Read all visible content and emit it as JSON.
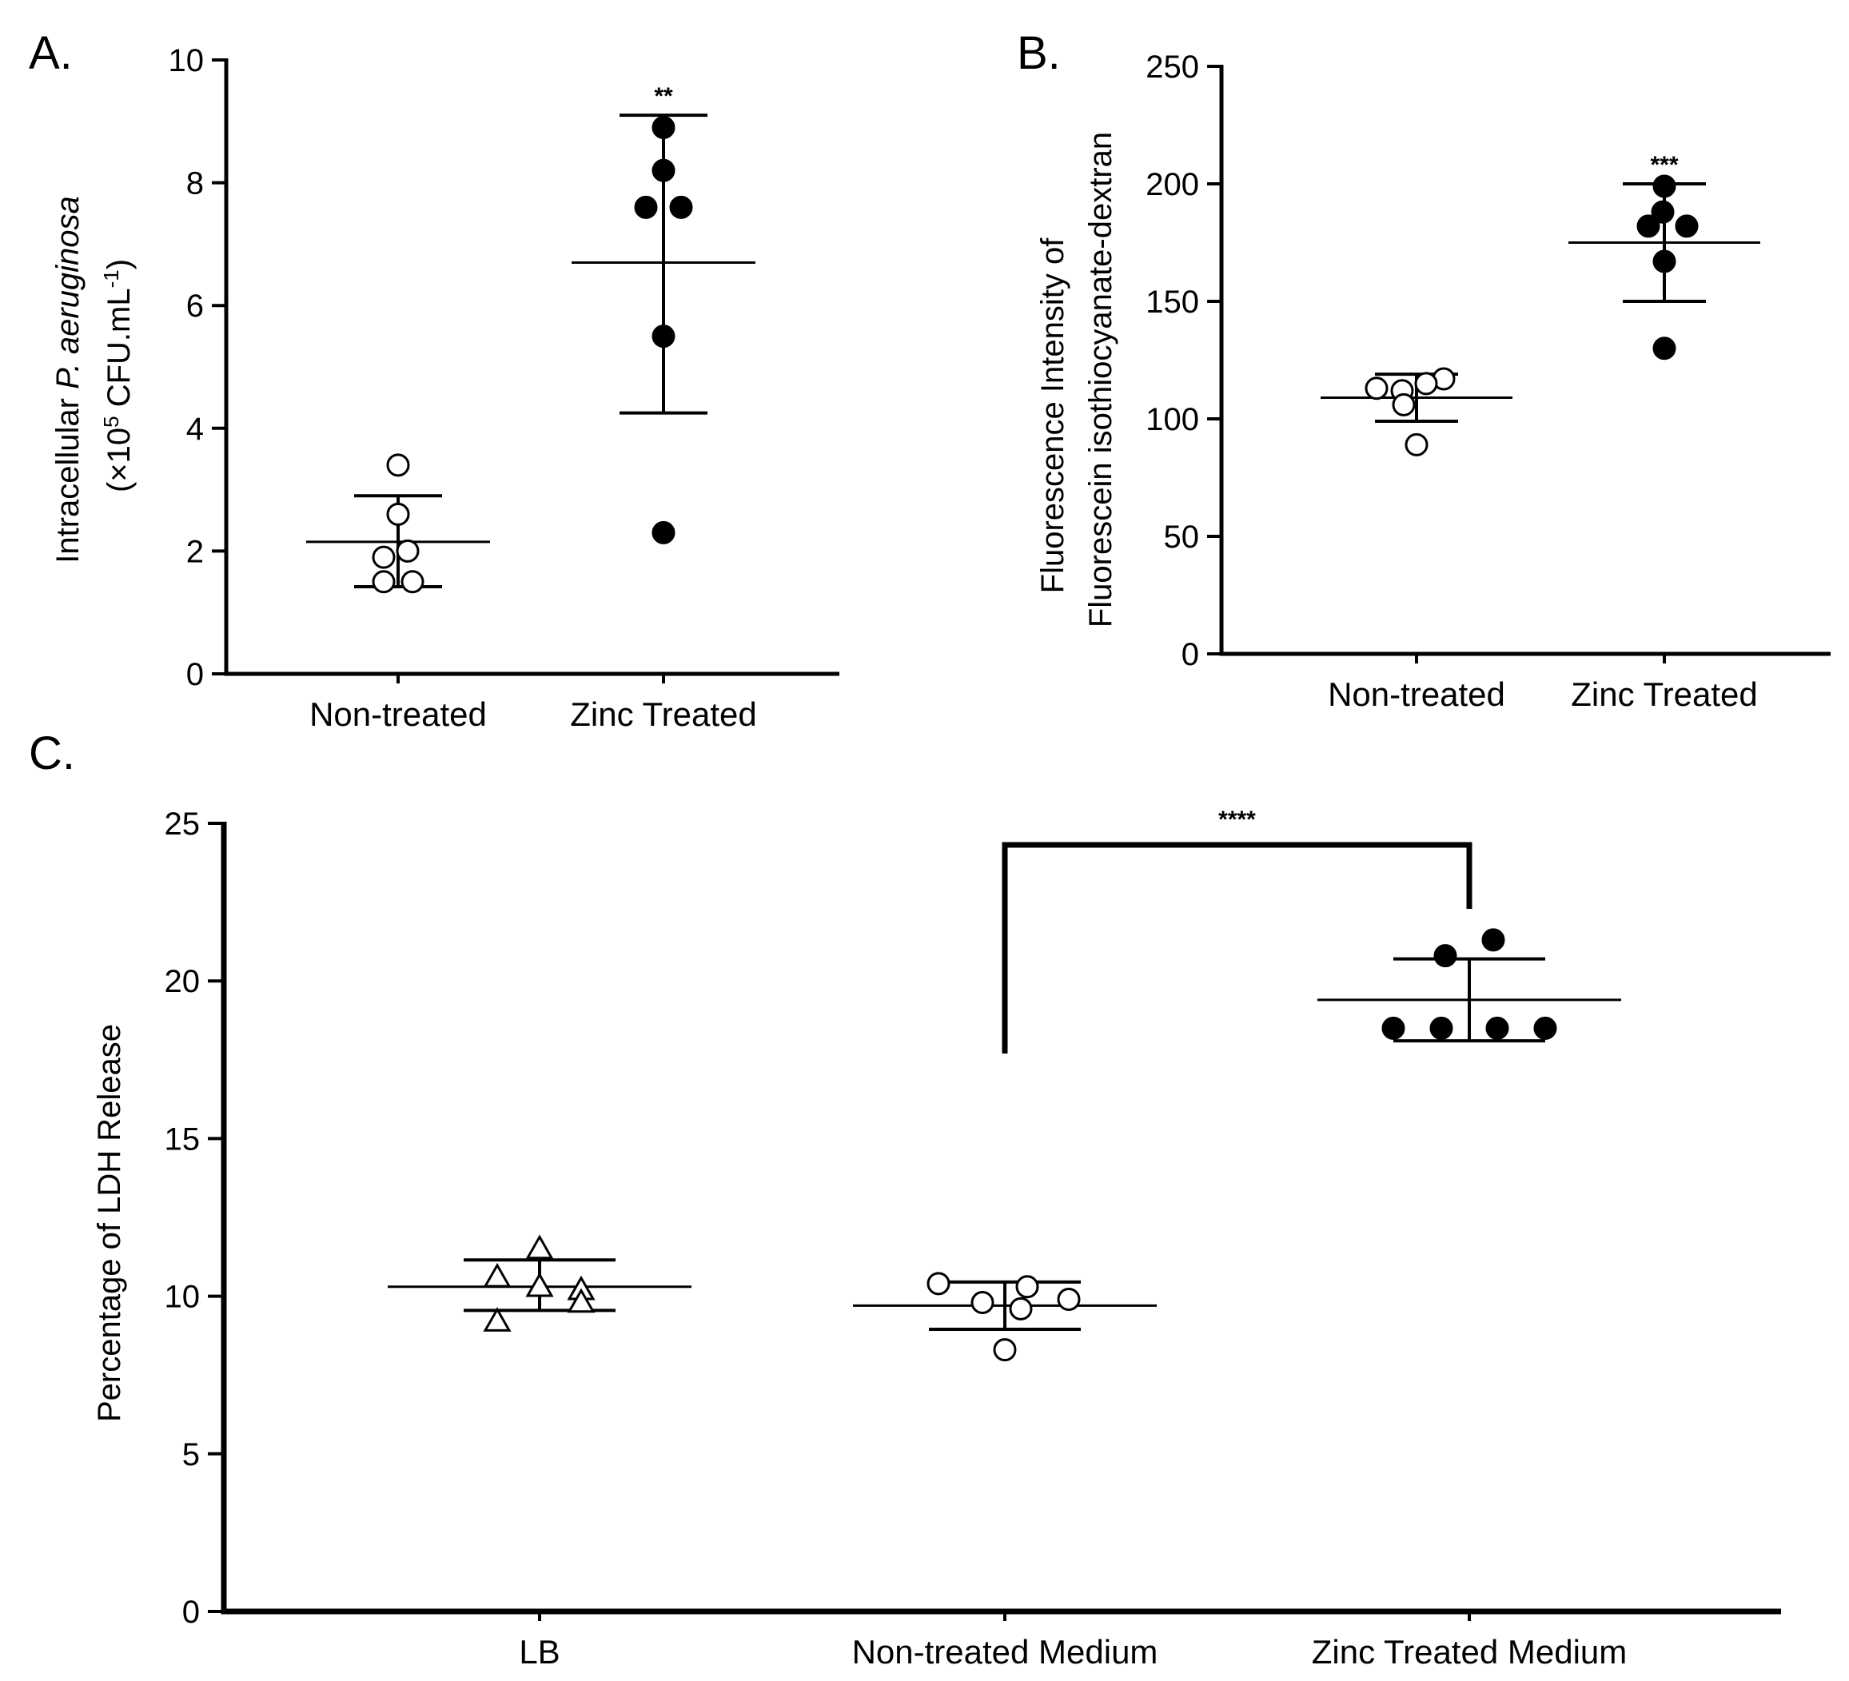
{
  "figure": {
    "panel_labels": [
      "A.",
      "B.",
      "C."
    ]
  },
  "chart_data": [
    {
      "type": "scatter",
      "panel": "A.",
      "ylabel_line1_pre": "Intracellular ",
      "ylabel_line1_italic": "P. aeruginosa",
      "ylabel_line2_pre": "(×10",
      "ylabel_line2_sup1": "5",
      "ylabel_line2_mid": " CFU.mL",
      "ylabel_line2_sup2": "-1",
      "ylabel_line2_post": ")",
      "ylim": [
        0,
        10
      ],
      "yticks": [
        "0",
        "2",
        "4",
        "6",
        "8",
        "10"
      ],
      "categories": [
        "Non-treated",
        "Zinc Treated"
      ],
      "series": [
        {
          "category": "Non-treated",
          "marker": "open-circle",
          "values": [
            3.4,
            2.6,
            2.0,
            1.9,
            1.5,
            1.5
          ],
          "mean": 2.15,
          "sd_low": 1.42,
          "sd_high": 2.9
        },
        {
          "category": "Zinc Treated",
          "marker": "filled-circle",
          "values": [
            8.9,
            8.2,
            7.6,
            7.6,
            5.5,
            2.3
          ],
          "mean": 6.7,
          "sd_low": 4.25,
          "sd_high": 9.1
        }
      ],
      "annotations": [
        {
          "category": "Zinc Treated",
          "text": "**"
        }
      ]
    },
    {
      "type": "scatter",
      "panel": "B.",
      "ylabel_line1": "Fluorescence Intensity of",
      "ylabel_line2": "Fluorescein isothiocyanate-dextran",
      "ylim": [
        0,
        250
      ],
      "yticks": [
        "0",
        "50",
        "100",
        "150",
        "200",
        "250"
      ],
      "categories": [
        "Non-treated",
        "Zinc Treated"
      ],
      "series": [
        {
          "category": "Non-treated",
          "marker": "open-circle",
          "values": [
            117,
            115,
            113,
            112,
            106,
            89
          ],
          "mean": 109,
          "sd_low": 99,
          "sd_high": 119
        },
        {
          "category": "Zinc Treated",
          "marker": "filled-circle",
          "values": [
            199,
            188,
            182,
            182,
            167,
            130
          ],
          "mean": 175,
          "sd_low": 150,
          "sd_high": 200
        }
      ],
      "annotations": [
        {
          "category": "Zinc Treated",
          "text": "***"
        }
      ]
    },
    {
      "type": "scatter",
      "panel": "C.",
      "ylabel": "Percentage of LDH Release",
      "ylim": [
        0,
        25
      ],
      "yticks": [
        "0",
        "5",
        "10",
        "15",
        "20",
        "25"
      ],
      "categories": [
        "LB",
        "Non-treated Medium",
        "Zinc Treated Medium"
      ],
      "series": [
        {
          "category": "LB",
          "marker": "open-triangle",
          "values": [
            11.5,
            10.6,
            10.3,
            10.2,
            9.8,
            9.2
          ],
          "mean": 10.3,
          "sd_low": 9.55,
          "sd_high": 11.15
        },
        {
          "category": "Non-treated Medium",
          "marker": "open-circle",
          "values": [
            10.4,
            10.3,
            9.9,
            9.8,
            9.6,
            8.3
          ],
          "mean": 9.7,
          "sd_low": 8.95,
          "sd_high": 10.45
        },
        {
          "category": "Zinc Treated Medium",
          "marker": "filled-circle",
          "values": [
            21.3,
            20.8,
            18.5,
            18.5,
            18.5,
            18.5
          ],
          "mean": 19.4,
          "sd_low": 18.1,
          "sd_high": 20.7
        }
      ],
      "annotations": [
        {
          "from": "Non-treated Medium",
          "to": "Zinc Treated Medium",
          "text": "****"
        }
      ]
    }
  ]
}
